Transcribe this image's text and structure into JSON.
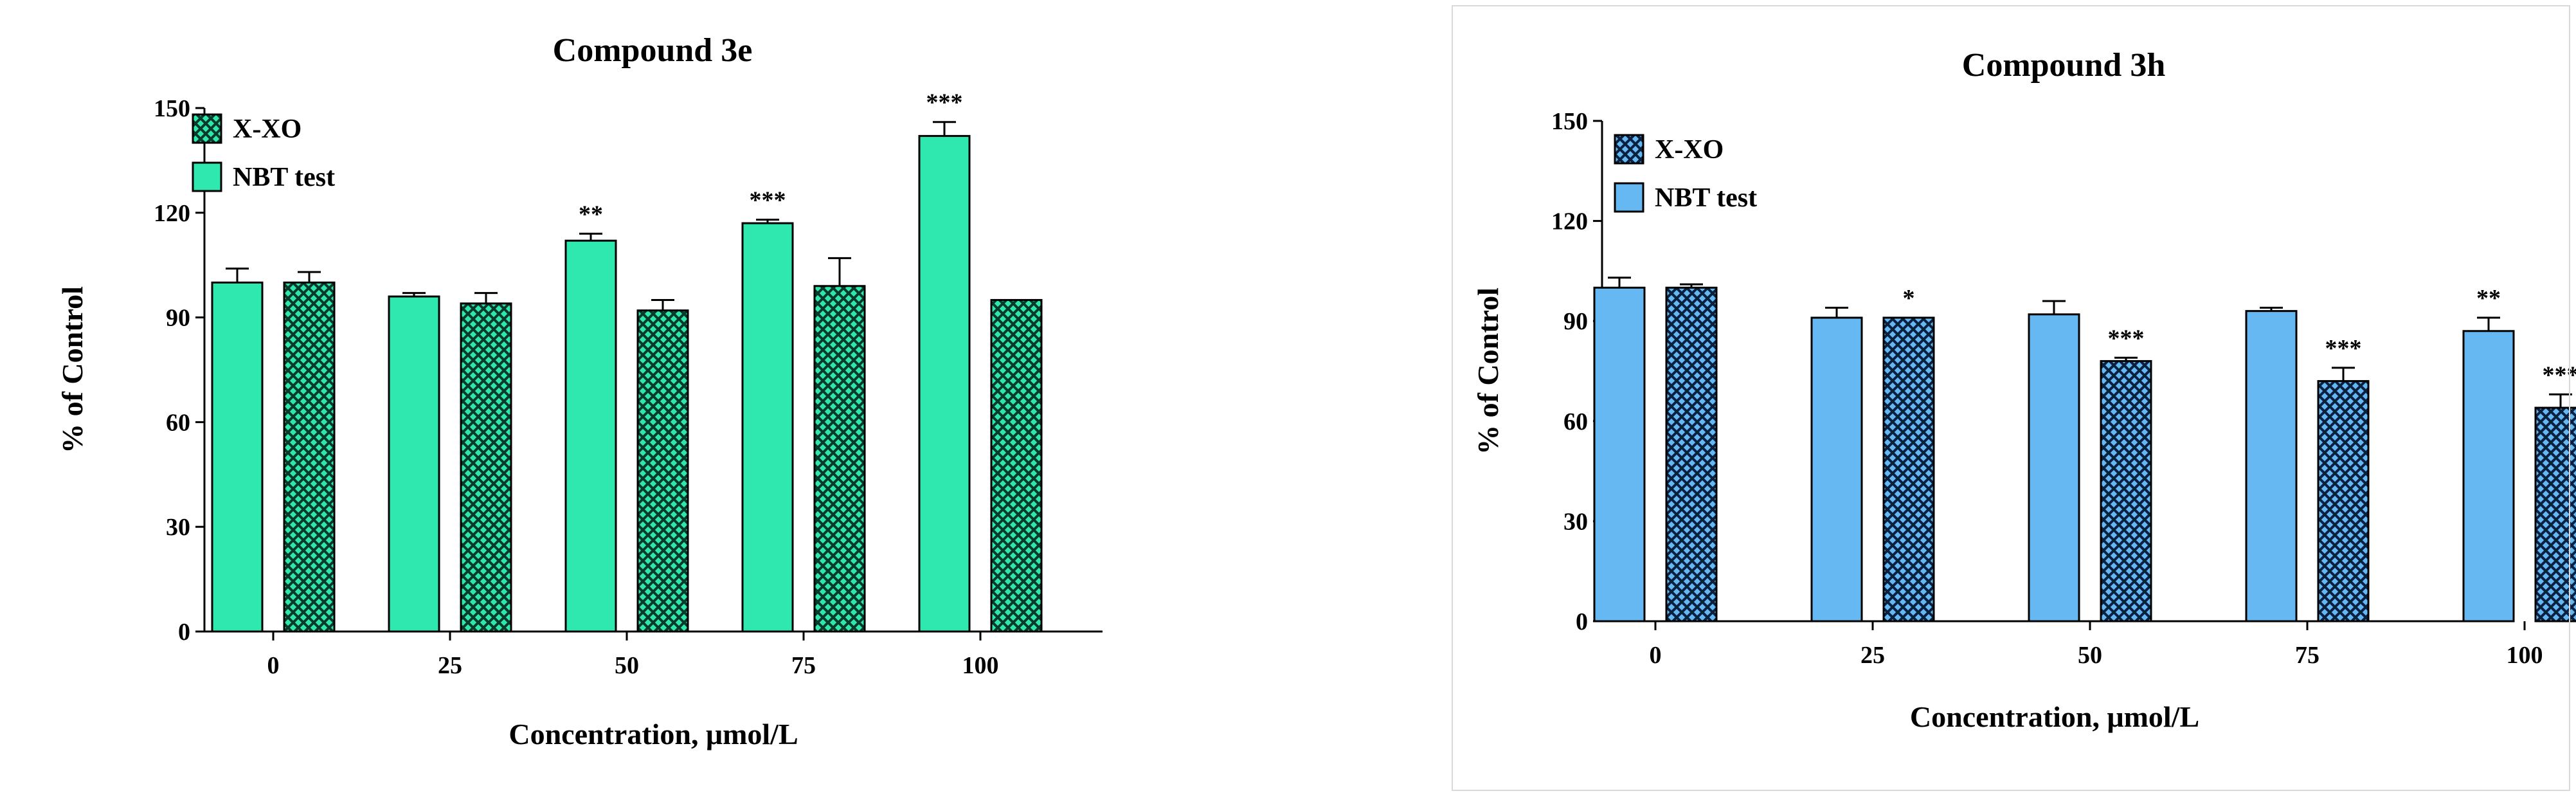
{
  "chart_data": [
    {
      "type": "bar",
      "title": "Compound 3e",
      "xlabel": "Concentration, μmol/L",
      "ylabel": "% of Control",
      "ylim": [
        0,
        150
      ],
      "yticks": [
        "0",
        "30",
        "60",
        "90",
        "120",
        "150"
      ],
      "categories": [
        "0",
        "25",
        "50",
        "75",
        "100"
      ],
      "series": [
        {
          "name": "NBT test",
          "pattern": "solid",
          "color": "#2ee8b0",
          "values": [
            100,
            96,
            112,
            117,
            142
          ],
          "errors": [
            4,
            1,
            2,
            1,
            4
          ],
          "significance": [
            "",
            "",
            "**",
            "***",
            "***"
          ]
        },
        {
          "name": "X-XO",
          "pattern": "crosshatch",
          "color": "#2ee8b0",
          "values": [
            100,
            94,
            92,
            99,
            95
          ],
          "errors": [
            3,
            3,
            3,
            8,
            0
          ],
          "significance": [
            "",
            "",
            "",
            "",
            ""
          ]
        }
      ],
      "legend_order": [
        "X-XO",
        "NBT test"
      ],
      "legend_position": "top-left"
    },
    {
      "type": "bar",
      "title": "Compound 3h",
      "xlabel": "Concentration, μmol/L",
      "ylabel": "% of Control",
      "ylim": [
        0,
        150
      ],
      "yticks": [
        "0",
        "30",
        "60",
        "90",
        "120",
        "150"
      ],
      "categories": [
        "0",
        "25",
        "50",
        "75",
        "100"
      ],
      "series": [
        {
          "name": "NBT test",
          "pattern": "solid",
          "color": "#66b8f2",
          "values": [
            100,
            91,
            92,
            93,
            87
          ],
          "errors": [
            3,
            3,
            4,
            1,
            4
          ],
          "significance": [
            "",
            "",
            "",
            "",
            "**"
          ]
        },
        {
          "name": "X-XO",
          "pattern": "crosshatch",
          "color": "#66b8f2",
          "values": [
            100,
            91,
            78,
            72,
            64
          ],
          "errors": [
            1,
            0,
            1,
            4,
            4
          ],
          "significance": [
            "",
            "*",
            "***",
            "***",
            "***"
          ]
        }
      ],
      "legend_order": [
        "X-XO",
        "NBT test"
      ],
      "legend_position": "top-left"
    }
  ]
}
